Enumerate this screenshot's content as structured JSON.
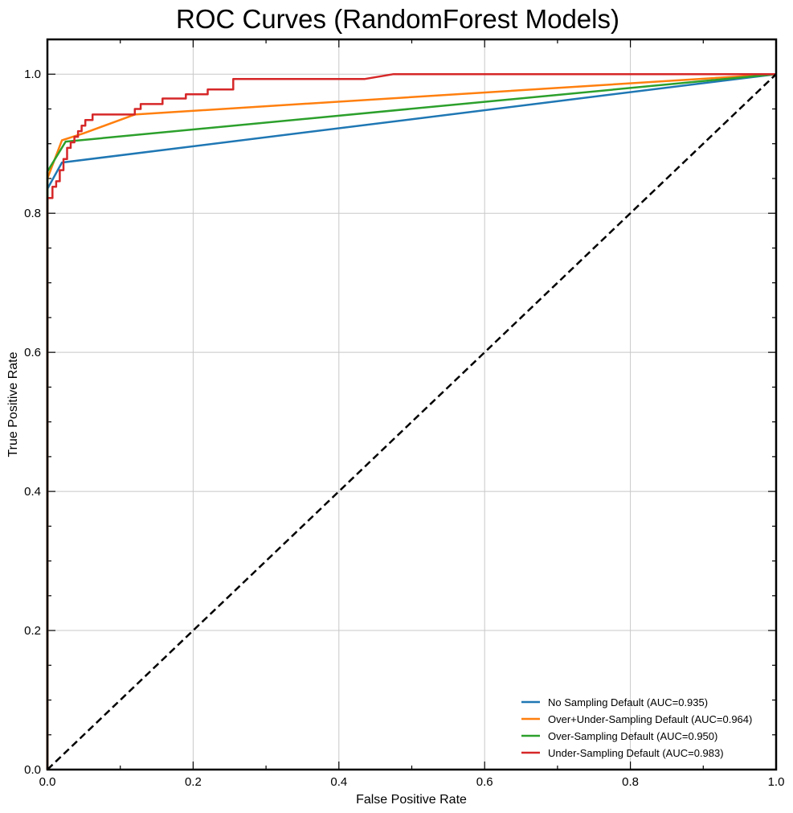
{
  "chart_data": {
    "type": "line",
    "title": "ROC Curves (RandomForest Models)",
    "xlabel": "False Positive Rate",
    "ylabel": "True Positive Rate",
    "xlim": [
      0,
      1
    ],
    "ylim": [
      0,
      1.05
    ],
    "xticks": [
      "0.0",
      "0.2",
      "0.4",
      "0.6",
      "0.8",
      "1.0"
    ],
    "yticks": [
      "0.0",
      "0.2",
      "0.4",
      "0.6",
      "0.8",
      "1.0"
    ],
    "grid": true,
    "legend_position": "lower right",
    "series": [
      {
        "name": "No Sampling Default (AUC=0.935)",
        "color": "#1f77b4",
        "x": [
          0,
          0.0,
          0.02,
          1.0
        ],
        "y": [
          0,
          0.835,
          0.873,
          1.0
        ]
      },
      {
        "name": "Over+Under-Sampling Default (AUC=0.964)",
        "color": "#ff7f0e",
        "x": [
          0,
          0.0,
          0.02,
          0.05,
          0.12,
          1.0
        ],
        "y": [
          0,
          0.85,
          0.905,
          0.915,
          0.942,
          1.0
        ]
      },
      {
        "name": "Over-Sampling Default (AUC=0.950)",
        "color": "#2ca02c",
        "x": [
          0,
          0.0,
          0.025,
          1.0
        ],
        "y": [
          0,
          0.86,
          0.903,
          1.0
        ]
      },
      {
        "name": "Under-Sampling Default (AUC=0.983)",
        "color": "#d62728",
        "x": [
          0,
          0.0,
          0.007,
          0.007,
          0.012,
          0.012,
          0.017,
          0.017,
          0.022,
          0.022,
          0.027,
          0.027,
          0.032,
          0.032,
          0.037,
          0.037,
          0.042,
          0.042,
          0.047,
          0.047,
          0.052,
          0.052,
          0.062,
          0.062,
          0.07,
          0.07,
          0.12,
          0.12,
          0.128,
          0.128,
          0.145,
          0.145,
          0.158,
          0.158,
          0.178,
          0.178,
          0.19,
          0.19,
          0.205,
          0.205,
          0.22,
          0.22,
          0.238,
          0.238,
          0.255,
          0.255,
          0.435,
          0.475,
          1.0
        ],
        "y": [
          0,
          0.822,
          0.822,
          0.838,
          0.838,
          0.846,
          0.846,
          0.862,
          0.862,
          0.878,
          0.878,
          0.894,
          0.894,
          0.902,
          0.902,
          0.91,
          0.91,
          0.918,
          0.918,
          0.926,
          0.926,
          0.934,
          0.934,
          0.942,
          0.942,
          0.942,
          0.942,
          0.95,
          0.95,
          0.957,
          0.957,
          0.957,
          0.957,
          0.965,
          0.965,
          0.965,
          0.965,
          0.971,
          0.971,
          0.971,
          0.971,
          0.978,
          0.978,
          0.978,
          0.978,
          0.993,
          0.993,
          1.0,
          1.0
        ]
      },
      {
        "name": "",
        "color": "#000000",
        "dashed": true,
        "x": [
          0,
          1
        ],
        "y": [
          0,
          1
        ]
      }
    ]
  }
}
